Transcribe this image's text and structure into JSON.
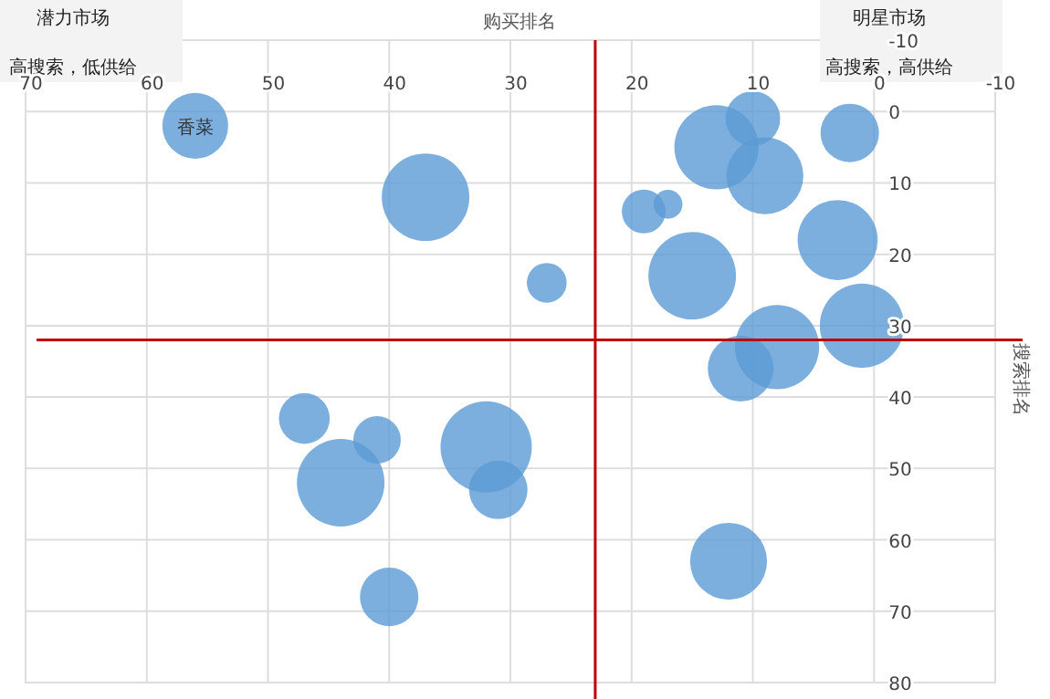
{
  "chart_data": {
    "type": "bubble",
    "xlabel": "购买排名",
    "ylabel": "搜索排名",
    "xlim": [
      70,
      -10
    ],
    "xticks": [
      70,
      60,
      50,
      40,
      30,
      20,
      10,
      0,
      -10
    ],
    "ylim": [
      80,
      -10
    ],
    "yticks": [
      -10,
      0,
      10,
      20,
      30,
      40,
      50,
      60,
      70,
      80
    ],
    "grid": true,
    "series": [
      {
        "color": "#5b9bd5",
        "x": [
          56,
          37,
          27,
          10,
          13,
          9,
          2,
          19,
          17,
          15,
          3,
          1,
          8,
          11,
          12,
          47,
          44,
          41,
          32,
          31,
          40
        ],
        "values": [
          2,
          12,
          24,
          1,
          5,
          9,
          3,
          14,
          13,
          23,
          18,
          30,
          33,
          36,
          63,
          43,
          52,
          46,
          47,
          53,
          68
        ],
        "sizes": [
          0.52,
          0.92,
          0.19,
          0.36,
          0.85,
          0.71,
          0.41,
          0.23,
          0.1,
          0.92,
          0.77,
          0.85,
          0.85,
          0.52,
          0.71,
          0.31,
          0.92,
          0.27,
          1,
          0.41,
          0.41
        ]
      }
    ],
    "ref_lines": [
      {
        "axis": "x",
        "value": 23,
        "color": "#c00000"
      },
      {
        "axis": "y",
        "value": 32,
        "color": "#c00000"
      }
    ],
    "annotations": [
      {
        "text": "香菜",
        "x": 56,
        "y": 2
      },
      "潜力市场",
      "高搜索，低供给",
      "明星市场",
      "高搜索，高供给"
    ]
  }
}
